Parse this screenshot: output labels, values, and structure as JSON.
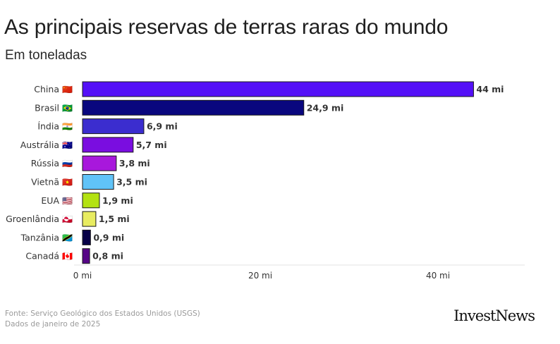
{
  "header": {
    "title": "As principais reservas de terras raras do mundo",
    "subtitle": "Em toneladas"
  },
  "chart_data": {
    "type": "bar",
    "orientation": "horizontal",
    "title": "As principais reservas de terras raras do mundo",
    "subtitle": "Em toneladas",
    "categories": [
      "China",
      "Brasil",
      "Índia",
      "Austrália",
      "Rússia",
      "Vietnã",
      "EUA",
      "Groenlândia",
      "Tanzânia",
      "Canadá"
    ],
    "flags": [
      "🇨🇳",
      "🇧🇷",
      "🇮🇳",
      "🇦🇺",
      "🇷🇺",
      "🇻🇳",
      "🇺🇸",
      "🇬🇱",
      "🇹🇿",
      "🇨🇦"
    ],
    "values": [
      44,
      24.9,
      6.9,
      5.7,
      3.8,
      3.5,
      1.9,
      1.5,
      0.9,
      0.8
    ],
    "value_labels": [
      "44 mi",
      "24,9 mi",
      "6,9 mi",
      "5,7 mi",
      "3,8 mi",
      "3,5 mi",
      "1,9 mi",
      "1,5 mi",
      "0,9 mi",
      "0,8 mi"
    ],
    "colors": [
      "#5410f7",
      "#09077e",
      "#3b2dcf",
      "#7a0de0",
      "#a818dc",
      "#60c3f8",
      "#b3e212",
      "#e8ec61",
      "#070047",
      "#560586"
    ],
    "xlim": [
      0,
      50
    ],
    "xticks": [
      0,
      20,
      40
    ],
    "xtick_labels": [
      "0 mi",
      "20 mi",
      "40 mi"
    ],
    "xlabel": "",
    "ylabel": "",
    "grid": false
  },
  "footer": {
    "source": "Fonte: Serviço Geológico dos Estados Unidos (USGS)",
    "date_note": "Dados de janeiro de 2025",
    "brand": "InvestNews"
  }
}
